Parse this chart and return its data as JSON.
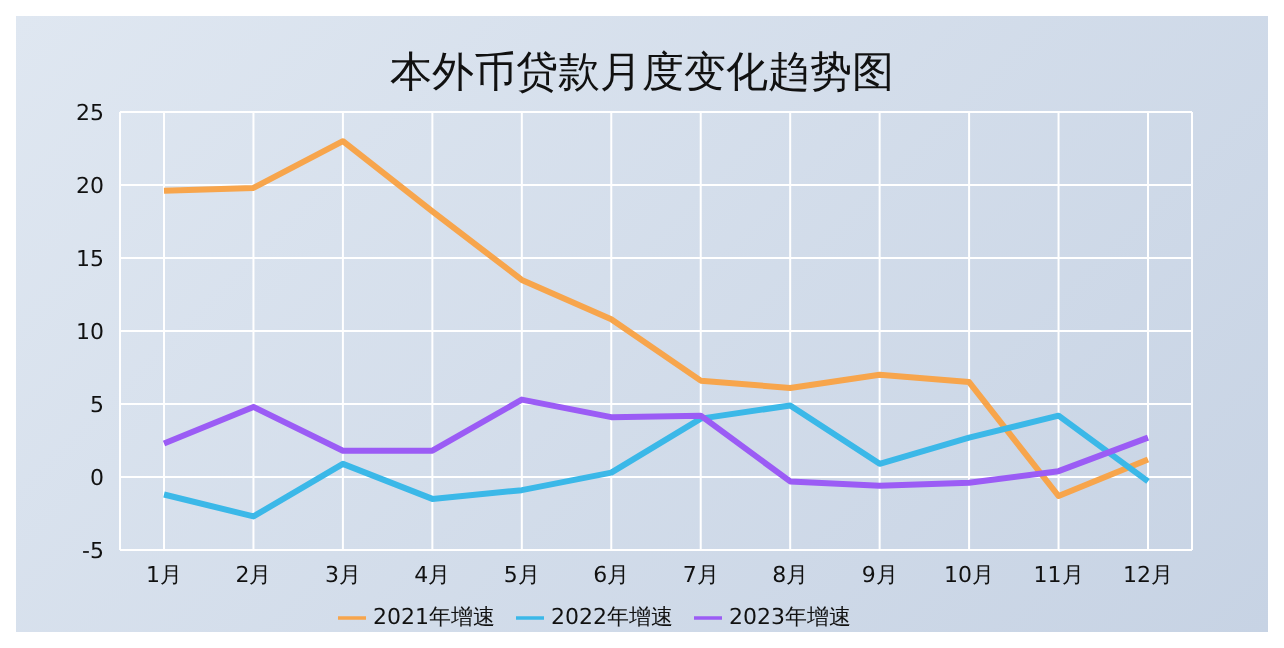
{
  "chart_data": {
    "type": "line",
    "title": "本外币贷款月度变化趋势图",
    "categories": [
      "1月",
      "2月",
      "3月",
      "4月",
      "5月",
      "6月",
      "7月",
      "8月",
      "9月",
      "10月",
      "11月",
      "12月"
    ],
    "series": [
      {
        "name": "2021年增速",
        "color": "#f7a54c",
        "values": [
          19.6,
          19.8,
          23.0,
          18.2,
          13.5,
          10.8,
          6.6,
          6.1,
          7.0,
          6.5,
          -1.3,
          1.2
        ]
      },
      {
        "name": "2022年增速",
        "color": "#3bb8e8",
        "values": [
          -1.2,
          -2.7,
          0.9,
          -1.5,
          -0.9,
          0.3,
          4.0,
          4.9,
          0.9,
          2.7,
          4.2,
          -0.3
        ]
      },
      {
        "name": "2023年增速",
        "color": "#9b5cf5",
        "values": [
          2.3,
          4.8,
          1.8,
          1.8,
          5.3,
          4.1,
          4.2,
          -0.3,
          -0.6,
          -0.4,
          0.4,
          2.7
        ]
      }
    ],
    "ylim": [
      -5,
      25
    ],
    "yticks": [
      -5,
      0,
      5,
      10,
      15,
      20,
      25
    ],
    "grid": true,
    "legend": "bottom",
    "marker": "none",
    "line_style": "solid"
  }
}
